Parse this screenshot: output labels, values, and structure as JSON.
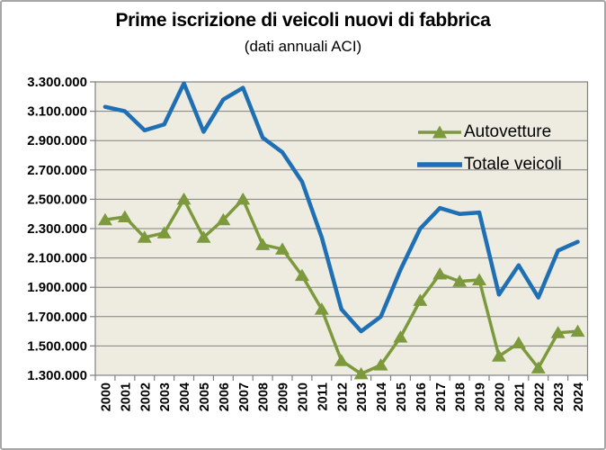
{
  "chart_data": {
    "type": "line",
    "title": "Prime iscrizione di veicoli nuovi di fabbrica",
    "subtitle": "(dati annuali ACI)",
    "categories": [
      "2000",
      "2001",
      "2002",
      "2003",
      "2004",
      "2005",
      "2006",
      "2007",
      "2008",
      "2009",
      "2010",
      "2011",
      "2012",
      "2013",
      "2014",
      "2015",
      "2016",
      "2017",
      "2018",
      "2019",
      "2020",
      "2021",
      "2022",
      "2023",
      "2024"
    ],
    "series": [
      {
        "name": "Autovetture",
        "color": "#7c9a3d",
        "marker": "triangle",
        "values": [
          2360000,
          2380000,
          2240000,
          2270000,
          2500000,
          2240000,
          2360000,
          2500000,
          2190000,
          2160000,
          1980000,
          1750000,
          1400000,
          1310000,
          1370000,
          1560000,
          1810000,
          1990000,
          1940000,
          1950000,
          1430000,
          1520000,
          1350000,
          1590000,
          1600000
        ]
      },
      {
        "name": "Totale veicoli",
        "color": "#1f6fb4",
        "marker": "none",
        "values": [
          3130000,
          3100000,
          2970000,
          3010000,
          3290000,
          2960000,
          3180000,
          3260000,
          2920000,
          2820000,
          2620000,
          2240000,
          1750000,
          1600000,
          1700000,
          2020000,
          2300000,
          2440000,
          2400000,
          2410000,
          1850000,
          2050000,
          1830000,
          2150000,
          2210000
        ]
      }
    ],
    "ylim": [
      1300000,
      3300000
    ],
    "ytick_step": 200000,
    "ytick_labels": [
      "3.300.000",
      "3.100.000",
      "2.900.000",
      "2.700.000",
      "2.500.000",
      "2.300.000",
      "2.100.000",
      "1.900.000",
      "1.700.000",
      "1.500.000",
      "1.300.000"
    ],
    "grid": true,
    "legend_position": "inside-upper-right",
    "plot_bg": "#eeece1",
    "grid_color": "#808080"
  }
}
